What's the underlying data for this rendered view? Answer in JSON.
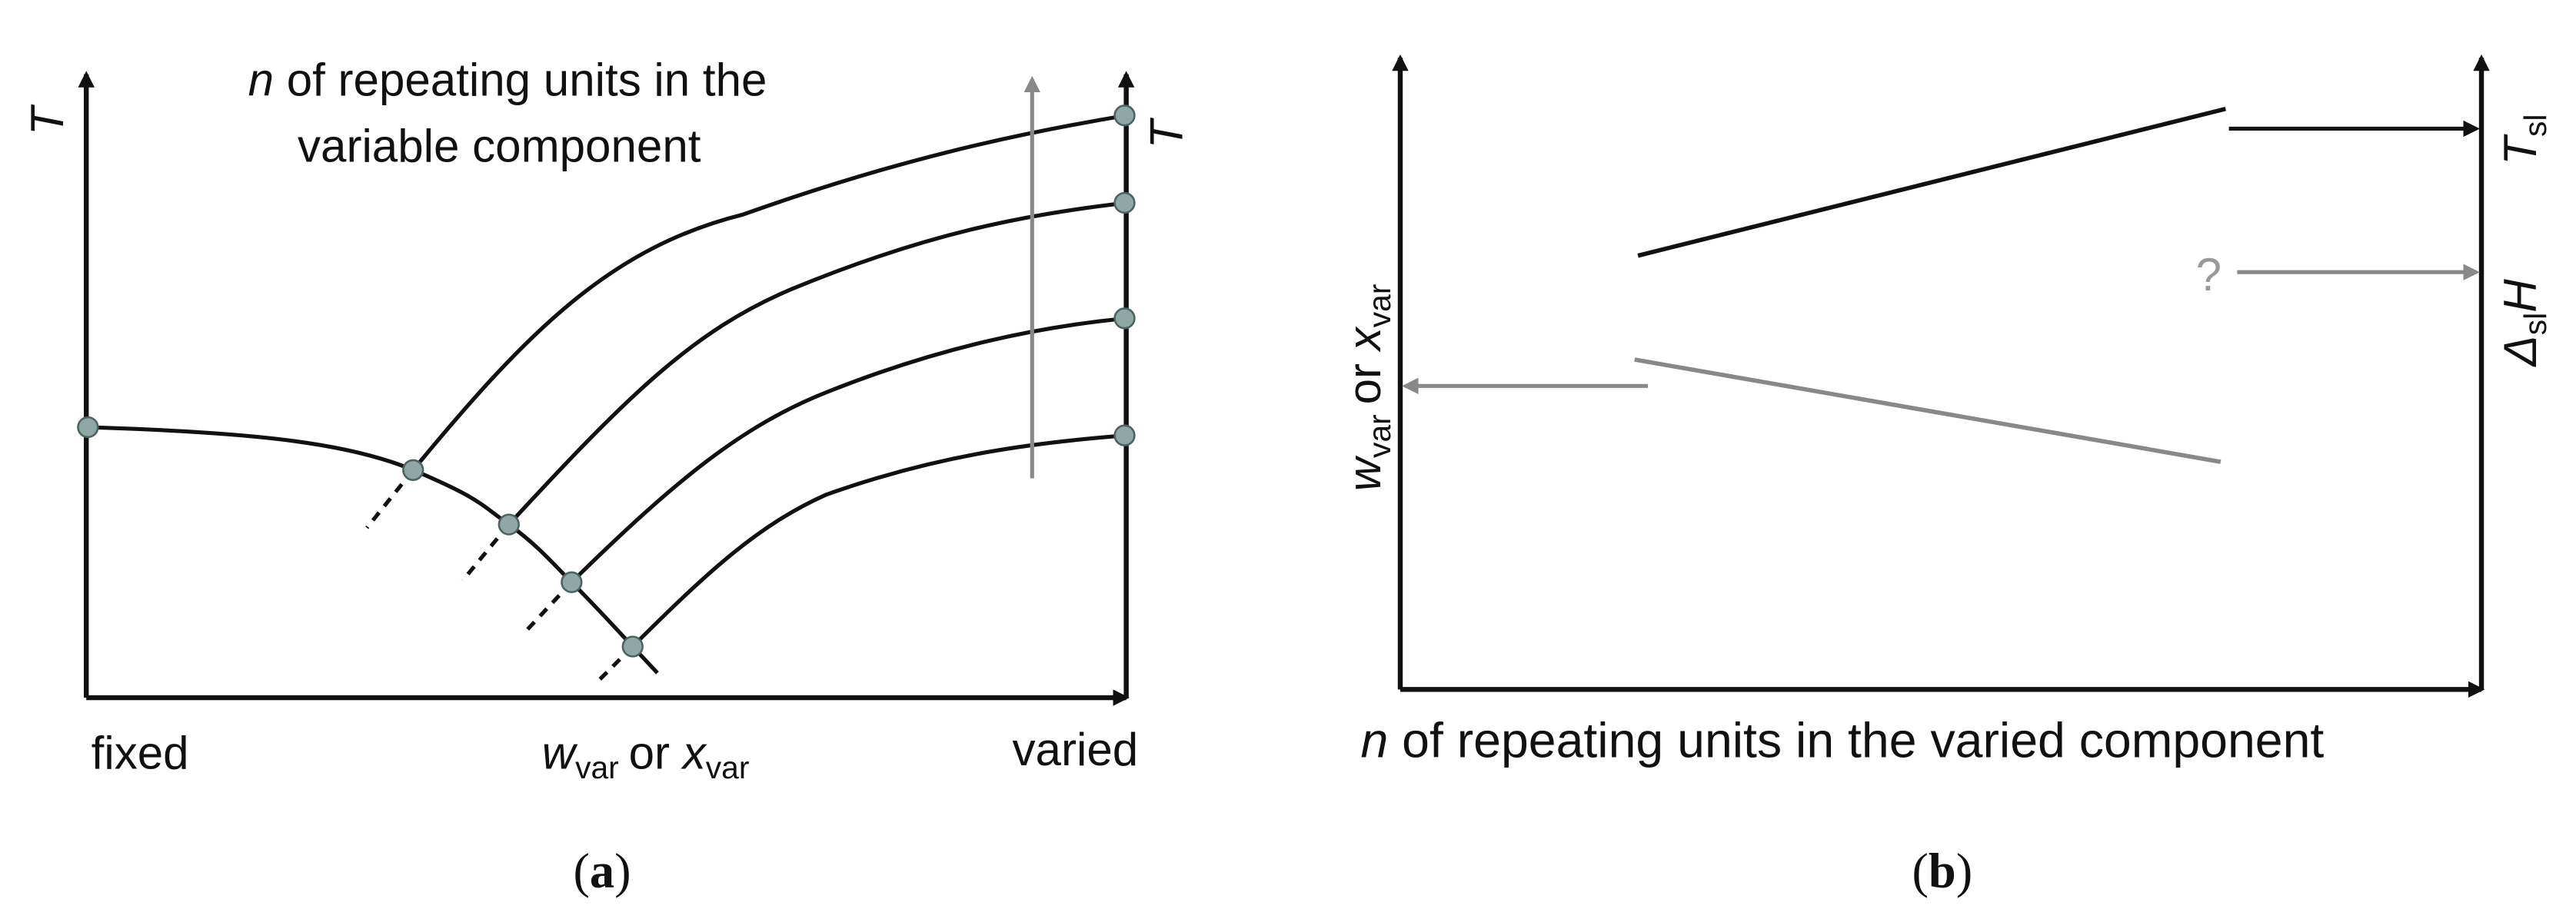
{
  "panel_a": {
    "annotation": {
      "symbol": "n",
      "line1": "of repeating units in the",
      "line2": "variable component"
    },
    "y_label_left": "T",
    "y_label_right": "T",
    "x_left": "fixed",
    "x_label": {
      "w": "w",
      "w_sub": "var",
      "or": "or",
      "x": "x",
      "x_sub": "var"
    },
    "x_right": "varied",
    "caption": {
      "open": "(",
      "letter": "a",
      "close": ")"
    }
  },
  "panel_b": {
    "y_label_left": {
      "w": "w",
      "w_sub": "var",
      "or": "or",
      "x": "x",
      "x_sub": "var"
    },
    "y_label_right_top": {
      "symbol": "T",
      "sub": "sl"
    },
    "y_label_right_bottom": {
      "delta": "Δ",
      "sub": "sl",
      "symbol": "H"
    },
    "unknown": "?",
    "x_label": {
      "symbol": "n",
      "rest": "of repeating units in the varied component"
    },
    "caption": {
      "open": "(",
      "letter": "b",
      "close": ")"
    }
  }
}
